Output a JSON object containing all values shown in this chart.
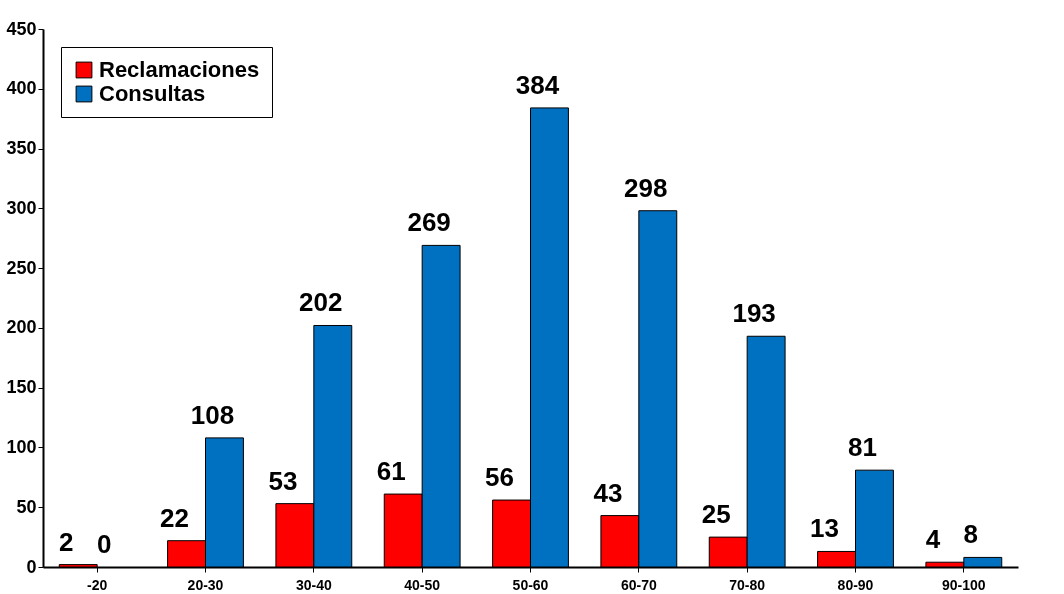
{
  "chart_data": {
    "type": "bar",
    "categories": [
      "-20",
      "20-30",
      "30-40",
      "40-50",
      "50-60",
      "60-70",
      "70-80",
      "80-90",
      "90-100"
    ],
    "series": [
      {
        "name": "Reclamaciones",
        "color": "#ff0000",
        "values": [
          2,
          22,
          53,
          61,
          56,
          43,
          25,
          13,
          4
        ]
      },
      {
        "name": "Consultas",
        "color": "#0070c0",
        "values": [
          0,
          108,
          202,
          269,
          384,
          298,
          193,
          81,
          8
        ]
      }
    ],
    "ylim": [
      0,
      450
    ],
    "yticks": [
      0,
      50,
      100,
      150,
      200,
      250,
      300,
      350,
      400,
      450
    ],
    "grid": false,
    "legend": "top left",
    "data_labels": true
  }
}
